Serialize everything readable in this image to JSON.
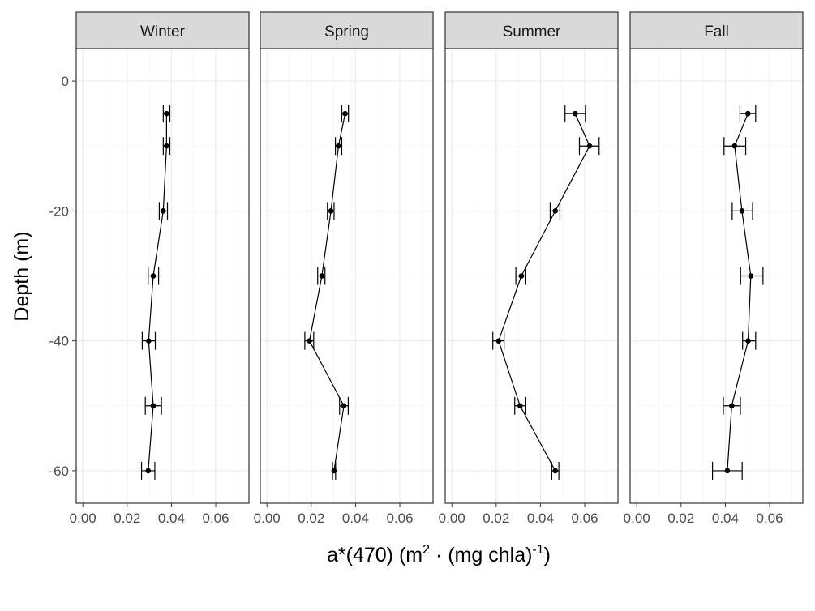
{
  "chart_data": {
    "type": "line",
    "facet_by": "season",
    "xlabel": "a*(470) (m² · (mg chla)⁻¹)",
    "xlabel_parts": {
      "base": "a*(470) (m",
      "sup1": "2",
      "mid": " · (mg chla)",
      "sup2": "-1",
      "end": ")"
    },
    "ylabel": "Depth (m)",
    "xlim": [
      -0.003,
      0.075
    ],
    "ylim": [
      -65,
      5
    ],
    "x_ticks": [
      0.0,
      0.02,
      0.04,
      0.06
    ],
    "x_tick_labels": [
      "0.00",
      "0.02",
      "0.04",
      "0.06"
    ],
    "y_ticks": [
      0,
      -20,
      -40,
      -60
    ],
    "y_tick_labels": [
      "0",
      "-20",
      "-40",
      "-60"
    ],
    "grid": true,
    "series": [
      {
        "name": "Winter",
        "depth": [
          -5,
          -10,
          -20,
          -30,
          -40,
          -50,
          -60
        ],
        "values": [
          0.0378,
          0.0378,
          0.0363,
          0.0318,
          0.0297,
          0.0318,
          0.0295
        ],
        "xerr_low": [
          0.0363,
          0.0363,
          0.0345,
          0.0295,
          0.0268,
          0.0282,
          0.0265
        ],
        "xerr_high": [
          0.0393,
          0.0393,
          0.0382,
          0.0342,
          0.0327,
          0.0355,
          0.0325
        ]
      },
      {
        "name": "Spring",
        "depth": [
          -5,
          -10,
          -20,
          -30,
          -40,
          -50,
          -60
        ],
        "values": [
          0.0353,
          0.0323,
          0.0289,
          0.0248,
          0.0192,
          0.0347,
          0.0303
        ],
        "xerr_low": [
          0.0338,
          0.0309,
          0.0273,
          0.0229,
          0.0171,
          0.0328,
          0.0296
        ],
        "xerr_high": [
          0.0368,
          0.0338,
          0.0303,
          0.0262,
          0.0211,
          0.0367,
          0.031
        ]
      },
      {
        "name": "Summer",
        "depth": [
          -5,
          -10,
          -20,
          -30,
          -40,
          -50,
          -60
        ],
        "values": [
          0.0557,
          0.0622,
          0.0467,
          0.0314,
          0.0211,
          0.0308,
          0.0467
        ],
        "xerr_low": [
          0.0511,
          0.0576,
          0.0444,
          0.0289,
          0.0185,
          0.0284,
          0.0451
        ],
        "xerr_high": [
          0.0603,
          0.0665,
          0.0488,
          0.0334,
          0.0236,
          0.0334,
          0.0483
        ]
      },
      {
        "name": "Fall",
        "depth": [
          -5,
          -10,
          -20,
          -30,
          -40,
          -50,
          -60
        ],
        "values": [
          0.0502,
          0.0442,
          0.0475,
          0.0515,
          0.0503,
          0.0429,
          0.0409
        ],
        "xerr_low": [
          0.0466,
          0.0394,
          0.0431,
          0.0469,
          0.0478,
          0.0391,
          0.0342
        ],
        "xerr_high": [
          0.0537,
          0.0492,
          0.0523,
          0.057,
          0.0537,
          0.0468,
          0.0476
        ]
      }
    ]
  }
}
